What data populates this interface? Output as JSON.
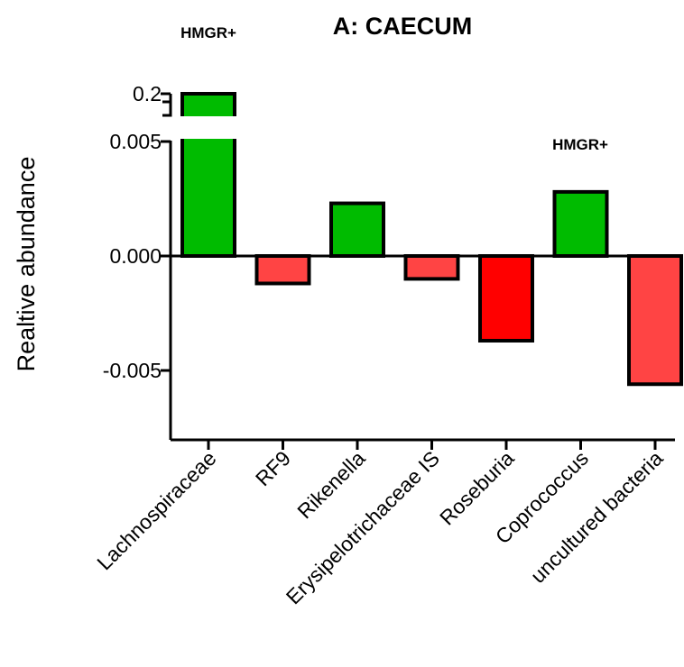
{
  "chart_data": {
    "type": "bar",
    "title": "A: CAECUM",
    "xlabel": "",
    "ylabel": "Realtive abundance",
    "categories": [
      "Lachnospiraceae",
      "RF9",
      "Rikenella",
      "Erysipelotrichaceae IS",
      "Roseburia",
      "Coprococcus",
      "uncultured bacteria"
    ],
    "values": [
      0.2,
      -0.0012,
      0.0023,
      -0.001,
      -0.0037,
      0.0028,
      -0.0056
    ],
    "colors": [
      "#00bb00",
      "#ff4444",
      "#00bb00",
      "#ff4444",
      "#ff0000",
      "#00bb00",
      "#ff4444"
    ],
    "y_ticks": [
      "0.2",
      "0.005",
      "0.000",
      "-0.005"
    ],
    "ylim": [
      -0.008,
      0.2
    ],
    "axis_break": [
      0.005,
      0.2
    ],
    "annotations": [
      {
        "text": "HMGR+",
        "category": "Lachnospiraceae"
      },
      {
        "text": "HMGR+",
        "category": "Coprococcus"
      }
    ],
    "grid": false,
    "legend": "none"
  }
}
